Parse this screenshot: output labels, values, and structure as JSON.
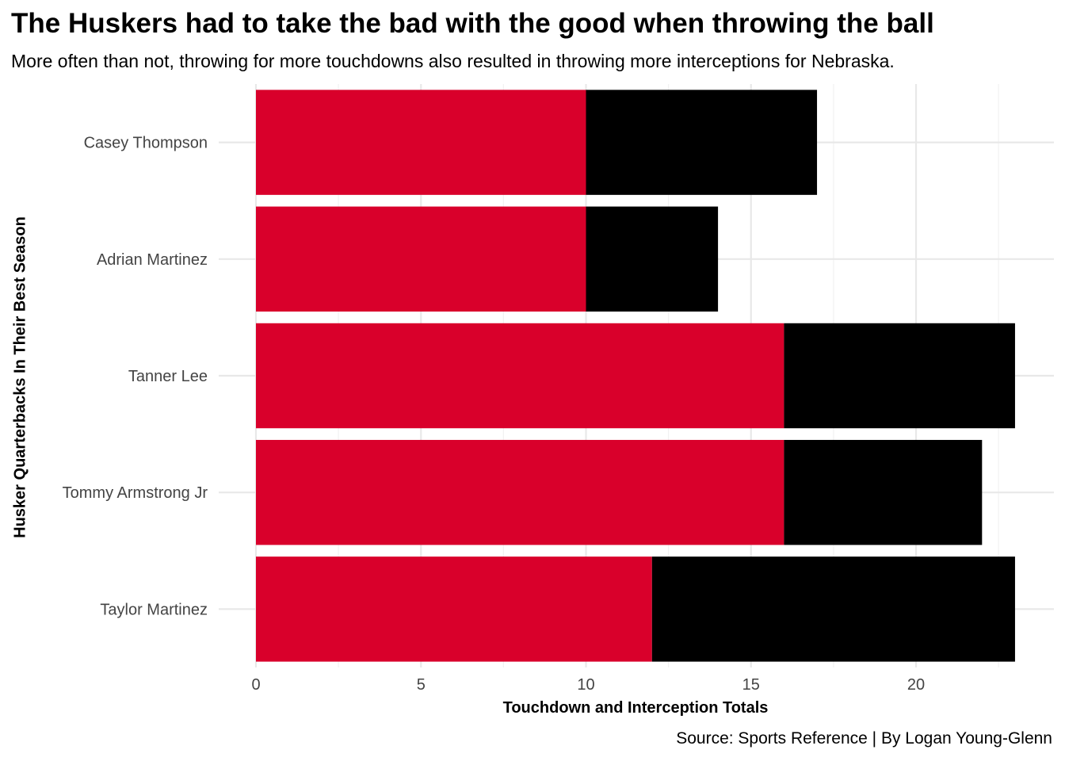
{
  "chart_data": {
    "type": "bar",
    "stacked": true,
    "orientation": "horizontal",
    "title": "The Huskers had to take the bad with the good when throwing the ball",
    "subtitle": "More often than not, throwing for more touchdowns also resulted in throwing more interceptions for Nebraska.",
    "xlabel": "Touchdown and Interception Totals",
    "ylabel": "Husker Quarterbacks In Their Best Season",
    "caption": "Source: Sports Reference | By Logan Young-Glenn",
    "categories": [
      "Casey Thompson",
      "Adrian Martinez",
      "Tanner Lee",
      "Tommy Armstrong Jr",
      "Taylor Martinez"
    ],
    "series": [
      {
        "values": [
          10,
          10,
          16,
          16,
          12
        ],
        "color": "#d9002b"
      },
      {
        "values": [
          7,
          4,
          7,
          6,
          11
        ],
        "color": "#000000"
      }
    ],
    "xlim": [
      0,
      24
    ],
    "xticks": [
      0,
      5,
      10,
      15,
      20
    ],
    "grid": true,
    "legend": "none"
  }
}
